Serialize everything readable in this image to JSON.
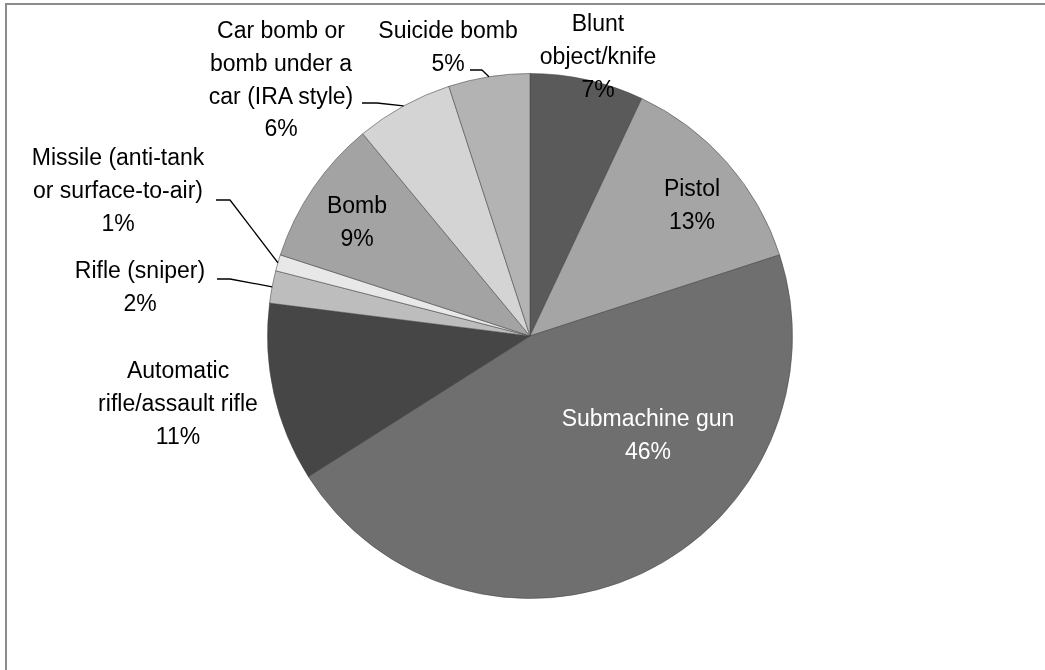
{
  "chart_data": {
    "type": "pie",
    "categories": [
      "Blunt object/knife",
      "Pistol",
      "Submachine gun",
      "Automatic rifle/assault rifle",
      "Rifle (sniper)",
      "Missile (anti-tank or surface-to-air)",
      "Bomb",
      "Car bomb or bomb under a car (IRA style)",
      "Suicide bomb"
    ],
    "values": [
      7,
      13,
      46,
      11,
      2,
      1,
      9,
      6,
      5
    ],
    "colors": [
      "#5a5a5a",
      "#a5a5a5",
      "#6f6f6f",
      "#464646",
      "#bdbdbd",
      "#e8e8e8",
      "#a3a3a3",
      "#d4d4d4",
      "#b3b3b3"
    ],
    "value_labels": [
      "7%",
      "13%",
      "46%",
      "11%",
      "2%",
      "1%",
      "9%",
      "6%",
      "5%"
    ]
  }
}
